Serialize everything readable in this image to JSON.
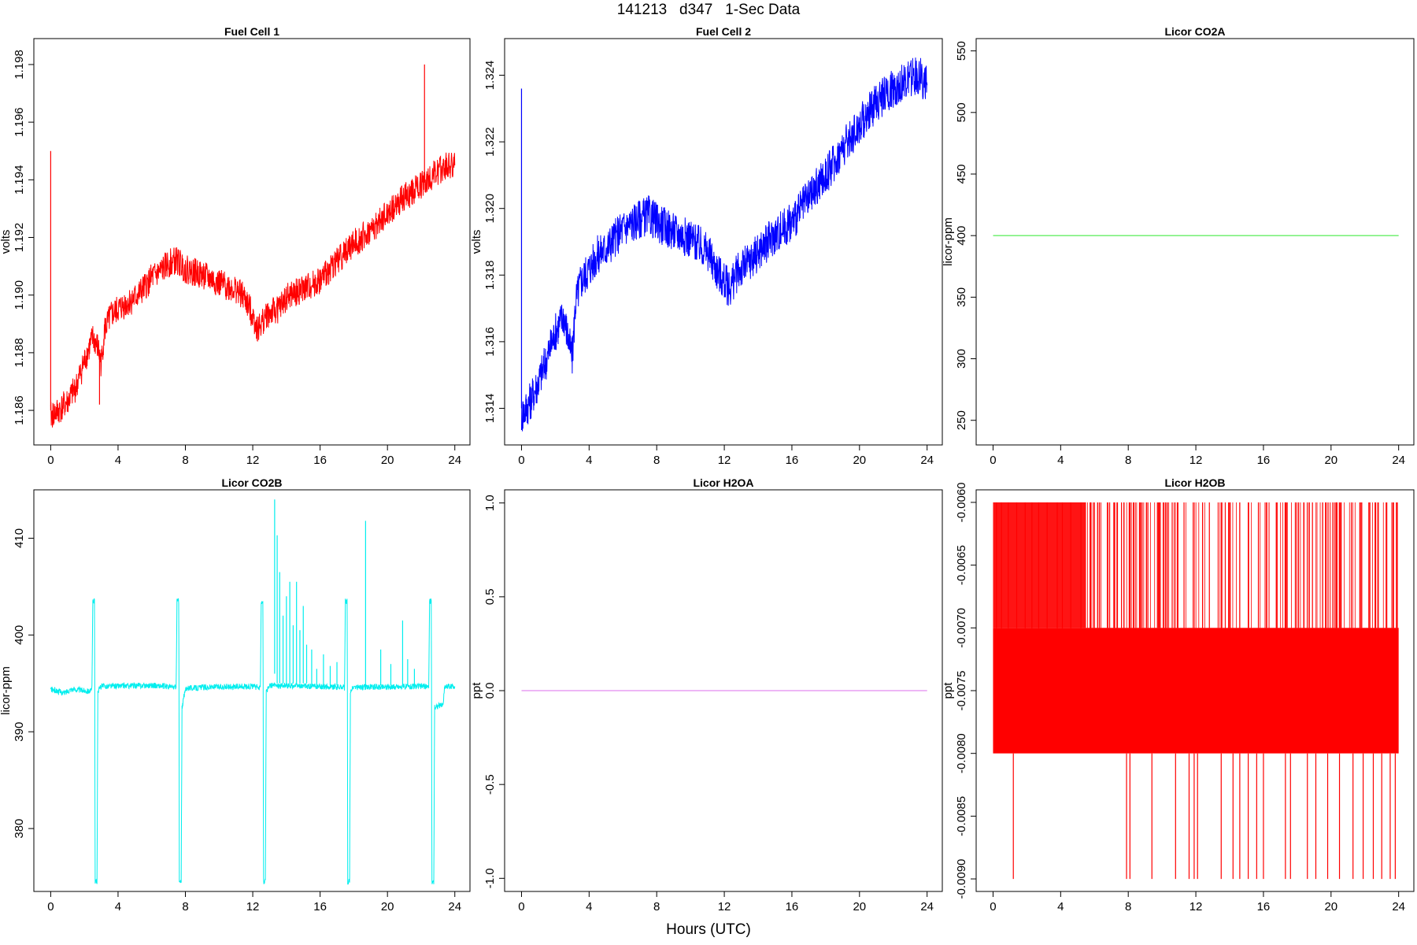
{
  "page_title": "141213   d347   1-Sec Data",
  "x_axis_label": "Hours (UTC)",
  "chart_data": [
    {
      "type": "line",
      "title": "Fuel Cell 1",
      "xlabel": "",
      "ylabel": "volts",
      "xlim": [
        -1,
        24.9
      ],
      "ylim": [
        1.1848,
        1.1989
      ],
      "xticks": [
        0,
        4,
        8,
        12,
        16,
        20,
        24
      ],
      "yticks": [
        1.186,
        1.188,
        1.19,
        1.192,
        1.194,
        1.196,
        1.198
      ],
      "ytick_labels": [
        "1.186",
        "1.188",
        "1.190",
        "1.192",
        "1.194",
        "1.196",
        "1.198"
      ],
      "color": "#ff0000",
      "noise_band": 0.0005,
      "series": [
        {
          "x": [
            0,
            0.5,
            1,
            1.5,
            2,
            2.5,
            2.8,
            3,
            3.2,
            3.6,
            4,
            4.5,
            5,
            5.5,
            6,
            6.5,
            7,
            7.5,
            8,
            9,
            10,
            11,
            11.5,
            12,
            12.3,
            12.8,
            13.5,
            14,
            15,
            16,
            17,
            18,
            19,
            20,
            21,
            22,
            23,
            23.5,
            24
          ],
          "y": [
            1.1858,
            1.186,
            1.1863,
            1.1868,
            1.1877,
            1.1885,
            1.1882,
            1.1876,
            1.1888,
            1.1893,
            1.1895,
            1.1897,
            1.1899,
            1.1902,
            1.1906,
            1.1908,
            1.1911,
            1.1912,
            1.1909,
            1.1907,
            1.1904,
            1.1902,
            1.1899,
            1.1893,
            1.1888,
            1.1893,
            1.1895,
            1.1899,
            1.1902,
            1.1905,
            1.1912,
            1.1918,
            1.1922,
            1.1928,
            1.1934,
            1.1938,
            1.1943,
            1.1945,
            1.1945
          ]
        }
      ],
      "spikes": [
        {
          "x": 0.0,
          "y_from": 1.186,
          "y_to": 1.195
        },
        {
          "x": 22.2,
          "y_from": 1.194,
          "y_to": 1.198
        },
        {
          "x": 2.9,
          "y_from": 1.1878,
          "y_to": 1.1862
        }
      ]
    },
    {
      "type": "line",
      "title": "Fuel Cell 2",
      "xlabel": "",
      "ylabel": "volts",
      "xlim": [
        -1,
        24.9
      ],
      "ylim": [
        1.3129,
        1.3251
      ],
      "xticks": [
        0,
        4,
        8,
        12,
        16,
        20,
        24
      ],
      "yticks": [
        1.314,
        1.316,
        1.318,
        1.32,
        1.322,
        1.324
      ],
      "ytick_labels": [
        "1.314",
        "1.316",
        "1.318",
        "1.320",
        "1.322",
        "1.324"
      ],
      "color": "#0000ff",
      "noise_band": 0.0006,
      "series": [
        {
          "x": [
            0,
            0.5,
            1,
            1.5,
            2,
            2.5,
            2.8,
            3,
            3.2,
            3.5,
            4,
            4.5,
            5,
            5.5,
            6,
            7,
            7.5,
            8,
            9,
            10,
            11,
            11.5,
            12,
            12.3,
            12.8,
            13.5,
            14,
            15,
            16,
            17,
            18,
            19,
            20,
            21,
            22,
            23,
            23.5,
            24
          ],
          "y": [
            1.3138,
            1.3142,
            1.3148,
            1.3155,
            1.3163,
            1.3168,
            1.316,
            1.3155,
            1.3172,
            1.3178,
            1.3182,
            1.3186,
            1.3188,
            1.3191,
            1.3194,
            1.3197,
            1.3198,
            1.3196,
            1.3193,
            1.3191,
            1.3187,
            1.3182,
            1.3178,
            1.3176,
            1.3181,
            1.3184,
            1.3187,
            1.3192,
            1.3196,
            1.3203,
            1.321,
            1.3218,
            1.3225,
            1.3232,
            1.3236,
            1.3239,
            1.324,
            1.3237
          ]
        }
      ],
      "spikes": [
        {
          "x": 0.0,
          "y_from": 1.314,
          "y_to": 1.3236
        }
      ]
    },
    {
      "type": "line",
      "title": "Licor CO2A",
      "xlabel": "",
      "ylabel": "licor-ppm",
      "xlim": [
        -1,
        24.9
      ],
      "ylim": [
        230,
        560
      ],
      "xticks": [
        0,
        4,
        8,
        12,
        16,
        20,
        24
      ],
      "yticks": [
        250,
        300,
        350,
        400,
        450,
        500,
        550
      ],
      "ytick_labels": [
        "250",
        "300",
        "350",
        "400",
        "450",
        "500",
        "550"
      ],
      "color": "#66ee66",
      "noise_band": 0,
      "series": [
        {
          "x": [
            0,
            24
          ],
          "y": [
            400,
            400
          ]
        }
      ],
      "spikes": []
    },
    {
      "type": "line",
      "title": "Licor CO2B",
      "xlabel": "",
      "ylabel": "licor-ppm",
      "xlim": [
        -1,
        24.9
      ],
      "ylim": [
        373.5,
        415
      ],
      "xticks": [
        0,
        4,
        8,
        12,
        16,
        20,
        24
      ],
      "yticks": [
        380,
        390,
        400,
        410
      ],
      "ytick_labels": [
        "380",
        "390",
        "400",
        "410"
      ],
      "color": "#00eeee",
      "noise_band": 0.3,
      "series": [
        {
          "x": [
            0,
            0.8,
            1.2,
            2.4,
            2.45,
            2.5,
            2.55,
            2.6,
            2.62,
            2.64,
            2.66,
            2.75,
            2.8,
            3.0,
            6.0,
            7.4,
            7.45,
            7.5,
            7.55,
            7.6,
            7.62,
            7.64,
            7.66,
            7.75,
            7.8,
            7.9,
            8.0,
            8.1,
            8.5,
            9.0,
            12.0,
            12.4,
            12.45,
            12.5,
            12.55,
            12.6,
            12.62,
            12.64,
            12.66,
            12.75,
            12.8,
            13.0,
            17.4,
            17.45,
            17.5,
            17.55,
            17.6,
            17.62,
            17.64,
            17.66,
            17.75,
            17.8,
            18.0,
            22.4,
            22.45,
            22.5,
            22.55,
            22.6,
            22.62,
            22.64,
            22.66,
            22.75,
            22.8,
            22.9,
            23.3,
            23.4,
            24.0
          ],
          "y": [
            394.4,
            394.0,
            394.4,
            394.2,
            394.5,
            403.5,
            403.5,
            403.5,
            394.3,
            374.5,
            374.5,
            374.5,
            394.2,
            394.7,
            394.8,
            394.6,
            394.5,
            403.5,
            403.5,
            403.5,
            394.3,
            374.5,
            374.5,
            374.5,
            392.5,
            393.5,
            394.3,
            394.6,
            394.5,
            394.6,
            394.7,
            394.5,
            394.5,
            403.5,
            403.5,
            403.5,
            394.3,
            374.5,
            374.5,
            374.5,
            394.0,
            394.8,
            394.6,
            394.5,
            403.5,
            403.5,
            403.5,
            394.3,
            374.5,
            374.5,
            374.5,
            394.2,
            394.6,
            394.7,
            394.5,
            403.5,
            403.5,
            403.5,
            394.3,
            374.5,
            374.5,
            374.5,
            392.6,
            392.6,
            392.8,
            394.7,
            394.7
          ]
        }
      ],
      "spikes": [
        {
          "x": 13.3,
          "y_from": 396.0,
          "y_to": 414.0
        },
        {
          "x": 13.45,
          "y_from": 395.0,
          "y_to": 410.3
        },
        {
          "x": 13.6,
          "y_from": 395.0,
          "y_to": 406.5
        },
        {
          "x": 13.8,
          "y_from": 395.0,
          "y_to": 402.0
        },
        {
          "x": 14.0,
          "y_from": 395.0,
          "y_to": 404.0
        },
        {
          "x": 14.2,
          "y_from": 395.0,
          "y_to": 405.5
        },
        {
          "x": 14.4,
          "y_from": 395.0,
          "y_to": 401.0
        },
        {
          "x": 14.6,
          "y_from": 395.0,
          "y_to": 405.5
        },
        {
          "x": 14.8,
          "y_from": 395.0,
          "y_to": 400.5
        },
        {
          "x": 15.0,
          "y_from": 395.0,
          "y_to": 403.0
        },
        {
          "x": 15.2,
          "y_from": 395.0,
          "y_to": 399.0
        },
        {
          "x": 15.5,
          "y_from": 394.8,
          "y_to": 398.5
        },
        {
          "x": 15.8,
          "y_from": 394.8,
          "y_to": 396.5
        },
        {
          "x": 16.2,
          "y_from": 394.8,
          "y_to": 398.0
        },
        {
          "x": 16.6,
          "y_from": 394.8,
          "y_to": 396.8
        },
        {
          "x": 17.0,
          "y_from": 394.8,
          "y_to": 397.2
        },
        {
          "x": 18.7,
          "y_from": 394.8,
          "y_to": 411.8
        },
        {
          "x": 19.6,
          "y_from": 394.8,
          "y_to": 398.5
        },
        {
          "x": 20.2,
          "y_from": 394.8,
          "y_to": 397.0
        },
        {
          "x": 20.9,
          "y_from": 394.8,
          "y_to": 401.5
        },
        {
          "x": 21.2,
          "y_from": 394.8,
          "y_to": 397.5
        },
        {
          "x": 21.6,
          "y_from": 394.8,
          "y_to": 396.5
        }
      ]
    },
    {
      "type": "line",
      "title": "Licor H2OA",
      "xlabel": "",
      "ylabel": "ppt",
      "xlim": [
        -1,
        24.9
      ],
      "ylim": [
        -1.07,
        1.07
      ],
      "xticks": [
        0,
        4,
        8,
        12,
        16,
        20,
        24
      ],
      "yticks": [
        -1.0,
        -0.5,
        0.0,
        0.5,
        1.0
      ],
      "ytick_labels": [
        "-1.0",
        "-0.5",
        "0.0",
        "0.5",
        "1.0"
      ],
      "color": "#e28bf0",
      "noise_band": 0,
      "series": [
        {
          "x": [
            0,
            24
          ],
          "y": [
            0,
            0
          ]
        }
      ],
      "spikes": []
    },
    {
      "type": "line",
      "title": "Licor H2OB",
      "xlabel": "",
      "ylabel": "ppt",
      "xlim": [
        -1,
        24.9
      ],
      "ylim": [
        -0.0091,
        -0.0059
      ],
      "xticks": [
        0,
        4,
        8,
        12,
        16,
        20,
        24
      ],
      "yticks": [
        -0.009,
        -0.0085,
        -0.008,
        -0.0075,
        -0.007,
        -0.0065,
        -0.006
      ],
      "ytick_labels": [
        "-0.0090",
        "-0.0085",
        "-0.0080",
        "-0.0075",
        "-0.0070",
        "-0.0065",
        "-0.0060"
      ],
      "color": "#ff0000",
      "noise_band": 0,
      "band": {
        "x_from": 0,
        "x_to": 24,
        "y_low": -0.008,
        "y_high": -0.007,
        "upper_solid_until": 5.5
      },
      "series": [],
      "spikes_up": [
        0.2,
        0.5,
        0.9,
        1.4,
        1.9,
        2.3,
        2.7,
        3.2,
        3.8,
        4.1,
        4.6,
        5.2,
        5.8,
        6.3,
        6.9,
        7.2,
        7.6,
        8.3,
        8.7,
        9.1,
        9.8,
        10.2,
        10.6,
        11.3,
        11.9,
        12.4,
        12.8,
        13.5,
        14.0,
        14.6,
        15.1,
        15.7,
        16.2,
        16.8,
        17.3,
        17.9,
        18.4,
        18.9,
        19.5,
        20.1,
        20.6,
        21.2,
        21.7,
        22.3,
        22.8,
        23.3,
        23.7
      ],
      "spikes_down": [
        1.2,
        7.9,
        8.1,
        9.4,
        10.8,
        11.6,
        11.9,
        12.1,
        13.5,
        14.2,
        14.6,
        15.1,
        15.6,
        16.0,
        17.3,
        17.6,
        18.6,
        19.1,
        19.8,
        20.5,
        21.3,
        21.9,
        22.5,
        23.0,
        23.5,
        23.8
      ]
    }
  ]
}
